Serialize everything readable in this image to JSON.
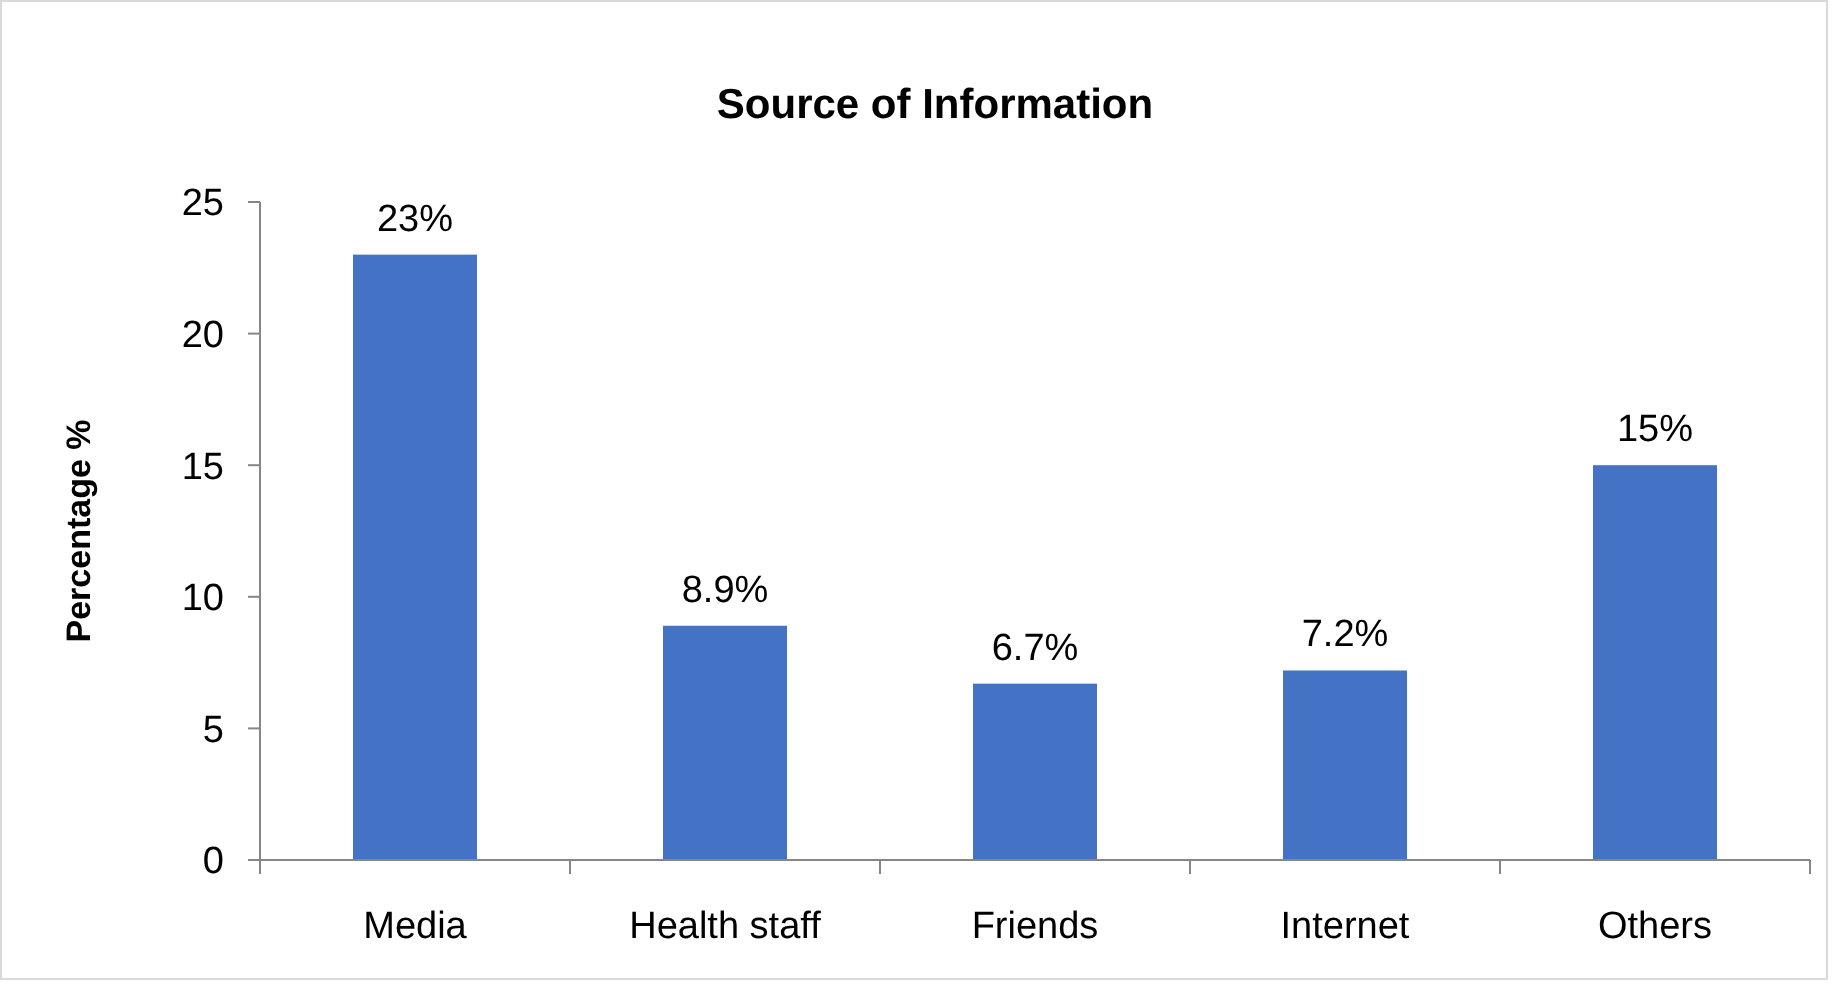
{
  "chart_data": {
    "type": "bar",
    "title": "Source of Information",
    "ylabel": "Percentage %",
    "categories": [
      "Media",
      "Health staff",
      "Friends",
      "Internet",
      "Others"
    ],
    "values": [
      23,
      8.9,
      6.7,
      7.2,
      15
    ],
    "value_labels": [
      "23%",
      "8.9%",
      "6.7%",
      "7.2%",
      "15%"
    ],
    "color": "#4472c4",
    "ylim": [
      0,
      25
    ],
    "yticks": [
      0,
      5,
      10,
      15,
      20,
      25
    ],
    "grid": false
  }
}
